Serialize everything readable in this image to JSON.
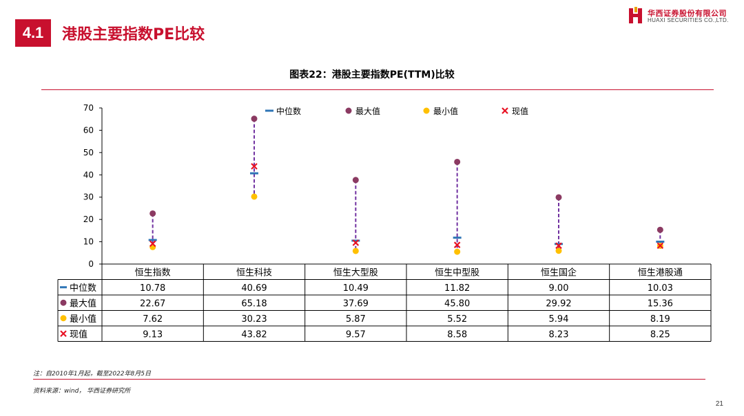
{
  "header": {
    "section_number": "4.1",
    "section_title": "港股主要指数PE比较",
    "logo_cn": "华西证券股份有限公司",
    "logo_en": "HUAXI SECURITIES CO.,LTD."
  },
  "figure_title": "图表22：港股主要指数PE(TTM)比较",
  "colors": {
    "accent": "#c8102e",
    "median": "#2e75b6",
    "max": "#8b3a62",
    "min": "#ffc000",
    "current": "#e81123",
    "range_line": "#7030a0"
  },
  "chart_data": {
    "type": "scatter",
    "title": "",
    "ylim": [
      0,
      70
    ],
    "yticks": [
      0,
      10,
      20,
      30,
      40,
      50,
      60,
      70
    ],
    "legend_position": "top",
    "categories": [
      "恒生指数",
      "恒生科技",
      "恒生大型股",
      "恒生中型股",
      "恒生国企",
      "恒生港股通"
    ],
    "series": [
      {
        "name": "中位数",
        "marker": "dash",
        "values": [
          10.78,
          40.69,
          10.49,
          11.82,
          9.0,
          10.03
        ],
        "labels": [
          "10.78",
          "40.69",
          "10.49",
          "11.82",
          "9.00",
          "10.03"
        ]
      },
      {
        "name": "最大值",
        "marker": "circle",
        "values": [
          22.67,
          65.18,
          37.69,
          45.8,
          29.92,
          15.36
        ],
        "labels": [
          "22.67",
          "65.18",
          "37.69",
          "45.80",
          "29.92",
          "15.36"
        ]
      },
      {
        "name": "最小值",
        "marker": "circle",
        "values": [
          7.62,
          30.23,
          5.87,
          5.52,
          5.94,
          8.19
        ],
        "labels": [
          "7.62",
          "30.23",
          "5.87",
          "5.52",
          "5.94",
          "8.19"
        ]
      },
      {
        "name": "现值",
        "marker": "x",
        "values": [
          9.13,
          43.82,
          9.57,
          8.58,
          8.23,
          8.25
        ],
        "labels": [
          "9.13",
          "43.82",
          "9.57",
          "8.58",
          "8.23",
          "8.25"
        ]
      }
    ]
  },
  "footer": {
    "note": "注：自2010年1月起，截至2022年8月5日",
    "source": "资料来源：wind， 华西证券研究所",
    "page": "21"
  }
}
